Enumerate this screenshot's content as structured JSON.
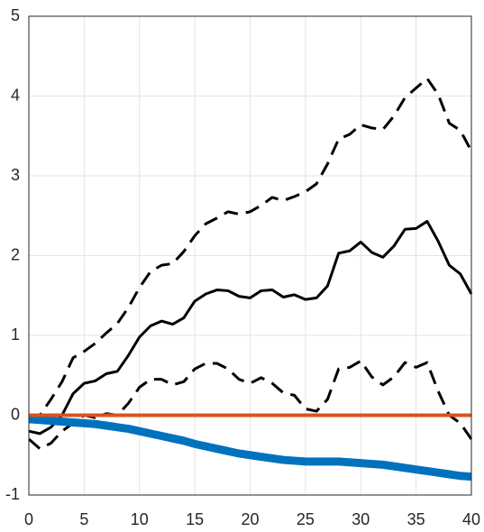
{
  "chart_data": {
    "type": "line",
    "x": [
      0,
      1,
      2,
      3,
      4,
      5,
      6,
      7,
      8,
      9,
      10,
      11,
      12,
      13,
      14,
      15,
      16,
      17,
      18,
      19,
      20,
      21,
      22,
      23,
      24,
      25,
      26,
      27,
      28,
      29,
      30,
      31,
      32,
      33,
      34,
      35,
      36,
      37,
      38,
      39,
      40
    ],
    "series": [
      {
        "color": "#000000",
        "linestyle": "--",
        "linewidth": 3,
        "values": [
          -0.05,
          0.0,
          0.2,
          0.42,
          0.72,
          0.8,
          0.9,
          1.03,
          1.15,
          1.35,
          1.6,
          1.8,
          1.88,
          1.9,
          2.05,
          2.25,
          2.4,
          2.47,
          2.55,
          2.52,
          2.55,
          2.63,
          2.73,
          2.69,
          2.74,
          2.8,
          2.9,
          3.15,
          3.46,
          3.52,
          3.64,
          3.6,
          3.58,
          3.75,
          3.98,
          4.1,
          4.22,
          4.02,
          3.66,
          3.57,
          3.31
        ]
      },
      {
        "color": "#000000",
        "linestyle": "--",
        "linewidth": 3,
        "values": [
          -0.3,
          -0.42,
          -0.35,
          -0.2,
          -0.1,
          0.0,
          -0.03,
          0.02,
          0.0,
          0.15,
          0.35,
          0.45,
          0.45,
          0.38,
          0.42,
          0.58,
          0.65,
          0.65,
          0.58,
          0.45,
          0.4,
          0.47,
          0.4,
          0.28,
          0.25,
          0.08,
          0.05,
          0.2,
          0.58,
          0.6,
          0.68,
          0.48,
          0.38,
          0.48,
          0.66,
          0.6,
          0.66,
          0.3,
          0.0,
          -0.1,
          -0.3
        ]
      },
      {
        "color": "#000000",
        "linestyle": "-",
        "linewidth": 3,
        "values": [
          -0.2,
          -0.23,
          -0.15,
          0.0,
          0.27,
          0.4,
          0.43,
          0.52,
          0.55,
          0.75,
          0.98,
          1.12,
          1.18,
          1.14,
          1.22,
          1.43,
          1.52,
          1.57,
          1.56,
          1.49,
          1.47,
          1.56,
          1.57,
          1.48,
          1.51,
          1.45,
          1.47,
          1.62,
          2.03,
          2.06,
          2.17,
          2.04,
          1.98,
          2.12,
          2.33,
          2.34,
          2.43,
          2.18,
          1.88,
          1.77,
          1.52
        ]
      },
      {
        "color": "#0072bd",
        "linestyle": "-",
        "linewidth": 9,
        "values": [
          -0.05,
          -0.06,
          -0.07,
          -0.08,
          -0.09,
          -0.1,
          -0.11,
          -0.13,
          -0.15,
          -0.17,
          -0.2,
          -0.23,
          -0.26,
          -0.29,
          -0.32,
          -0.36,
          -0.39,
          -0.42,
          -0.45,
          -0.48,
          -0.5,
          -0.52,
          -0.54,
          -0.56,
          -0.57,
          -0.58,
          -0.58,
          -0.58,
          -0.58,
          -0.59,
          -0.6,
          -0.61,
          -0.62,
          -0.64,
          -0.66,
          -0.68,
          -0.7,
          -0.72,
          -0.74,
          -0.76,
          -0.77
        ]
      },
      {
        "color": "#d95319",
        "linestyle": "-",
        "linewidth": 4,
        "values": [
          0,
          0,
          0,
          0,
          0,
          0,
          0,
          0,
          0,
          0,
          0,
          0,
          0,
          0,
          0,
          0,
          0,
          0,
          0,
          0,
          0,
          0,
          0,
          0,
          0,
          0,
          0,
          0,
          0,
          0,
          0,
          0,
          0,
          0,
          0,
          0,
          0,
          0,
          0,
          0,
          0
        ]
      }
    ],
    "xlim": [
      0,
      40
    ],
    "xticks": [
      0,
      5,
      10,
      15,
      20,
      25,
      30,
      35,
      40
    ],
    "ylim": [
      -1,
      5
    ],
    "yticks": [
      -1,
      0,
      1,
      2,
      3,
      4,
      5
    ],
    "grid": true
  }
}
